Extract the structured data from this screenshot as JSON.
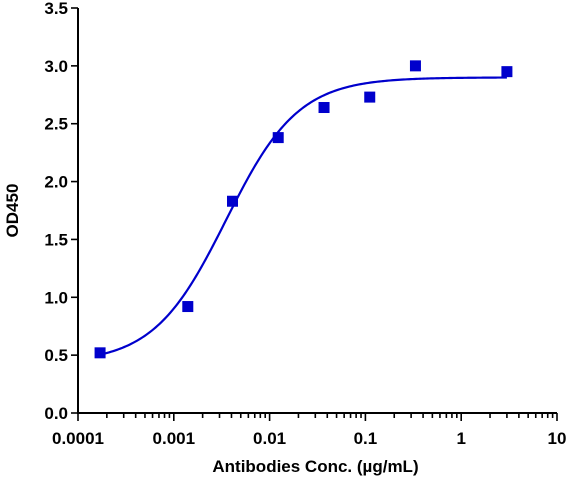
{
  "chart_data": {
    "type": "scatter",
    "title": "",
    "xlabel": "Antibodies Conc. (µg/mL)",
    "ylabel": "OD450",
    "x_scale": "log",
    "xlim": [
      0.0001,
      10
    ],
    "ylim": [
      0,
      3.5
    ],
    "x_ticks": [
      "0.0001",
      "0.001",
      "0.01",
      "0.1",
      "1",
      "10"
    ],
    "y_ticks": [
      "0.0",
      "0.5",
      "1.0",
      "1.5",
      "2.0",
      "2.5",
      "3.0",
      "3.5"
    ],
    "grid": false,
    "series": [
      {
        "type": "scatter",
        "marker": "square",
        "color": "#0000CC",
        "points": [
          {
            "x": 0.00017,
            "y": 0.52
          },
          {
            "x": 0.0014,
            "y": 0.92
          },
          {
            "x": 0.0041,
            "y": 1.83
          },
          {
            "x": 0.0123,
            "y": 2.38
          },
          {
            "x": 0.037,
            "y": 2.64
          },
          {
            "x": 0.111,
            "y": 2.73
          },
          {
            "x": 0.333,
            "y": 3.0
          },
          {
            "x": 3.0,
            "y": 2.95
          }
        ]
      },
      {
        "type": "line",
        "fit": "4PL sigmoidal curve",
        "color": "#0000CC",
        "bottom": 0.43,
        "top": 2.9,
        "ec50": 0.0035,
        "hill": 1.15,
        "x_range": [
          0.00017,
          3.0
        ]
      }
    ]
  }
}
